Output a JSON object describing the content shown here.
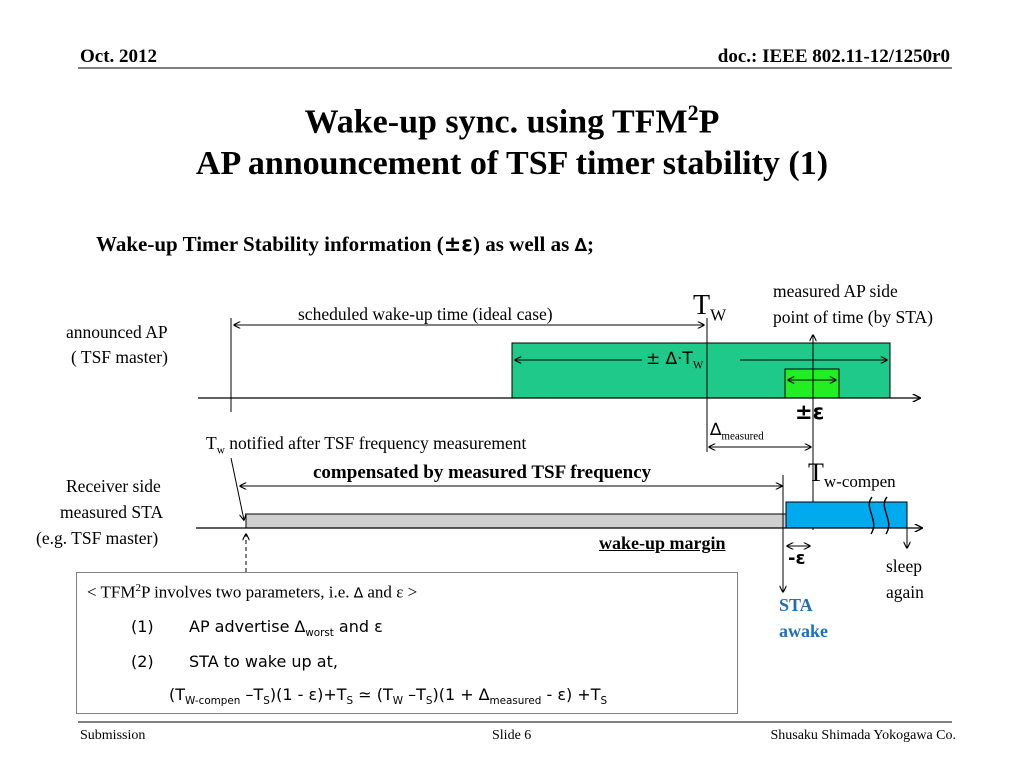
{
  "header": {
    "date": "Oct. 2012",
    "doc": "doc.: IEEE 802.11-12/1250r0"
  },
  "title": {
    "line1_main": "Wake-up sync. using TFM",
    "line1_sup": "2",
    "line1_tail": "P",
    "line2": "AP announcement of TSF timer stability (1)"
  },
  "subtitle": {
    "text_before": "Wake-up Timer Stability information (",
    "symbol_pm_eps": "±ε",
    "text_middle": ") as well as ",
    "symbol_delta": "∆",
    "text_after": ";"
  },
  "diagram": {
    "announced_ap_line1": "announced AP",
    "announced_ap_line2": "( TSF master)",
    "scheduled_label": "scheduled wake-up time (ideal case)",
    "tw_main": "T",
    "tw_sub": "W",
    "measured_ap_line1": "measured AP side",
    "measured_ap_line2": "point of time (by STA)",
    "pm_delta_tw": "± ∆·T",
    "pm_delta_tw_sub": "W",
    "pm_eps": "±ε",
    "delta_main": "∆",
    "delta_sub": "measured",
    "tw_notified_main": "T",
    "tw_notified_sub": "w",
    "tw_notified_rest": " notified after TSF frequency measurement",
    "compensated_label": "compensated by measured TSF frequency",
    "twcompen_main": "T",
    "twcompen_sub": "w-compen",
    "receiver_line1": "Receiver side",
    "receiver_line2": "measured STA",
    "receiver_line3": "(e.g. TSF master)",
    "wake_margin": "wake-up margin",
    "neg_eps": "-ε",
    "sta_awake_line1": "STA",
    "sta_awake_line2": "awake",
    "sleep_line1": "sleep",
    "sleep_line2": "again"
  },
  "textbox": {
    "line1_a": "< TFM",
    "line1_sup": "2",
    "line1_b": "P involves two parameters, i.e. ",
    "line1_delta": "∆",
    "line1_c": " and ",
    "line1_eps": "ε",
    "line1_d": " >",
    "item1_num": "(1)",
    "item1_a": "AP advertise  ∆",
    "item1_sub": "worst",
    "item1_b": "  and  ε",
    "item2_num": "(2)",
    "item2_text": "STA to wake up at,",
    "formula_1": "(T",
    "formula_2": "W-compen",
    "formula_3": " –T",
    "formula_4": "S",
    "formula_5": ")(1 - ε)+T",
    "formula_6": "S",
    "formula_7": " ≃ (T",
    "formula_8": "W",
    "formula_9": " –T",
    "formula_10": "S",
    "formula_11": ")(1 + ∆",
    "formula_12": "measured",
    "formula_13": " - ε) +T",
    "formula_14": "S"
  },
  "footer": {
    "left": "Submission",
    "center": "Slide 6",
    "right": "Shusaku Shimada Yokogawa Co."
  },
  "colors": {
    "green_box": "#1ec98a",
    "bright_green": "#22ee22",
    "blue_box": "#00aaee",
    "gray_bar": "#cfcfcf",
    "sta_awake_text": "#1e6fb8"
  }
}
